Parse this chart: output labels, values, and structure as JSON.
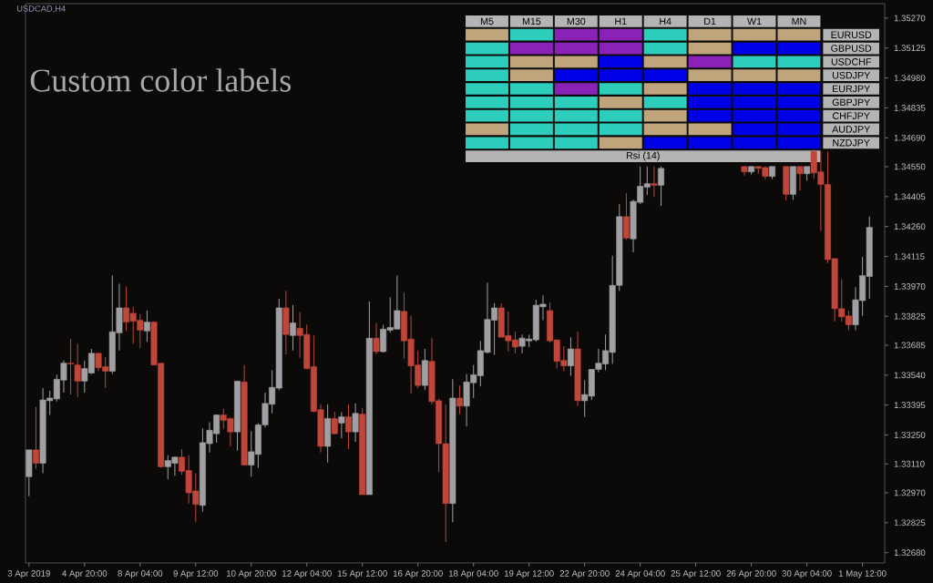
{
  "chart_data": [
    {
      "type": "candlestick",
      "title": "USDCAD,H4",
      "annotations": [
        "Custom color labels"
      ],
      "categories": [
        "3 Apr 2019",
        null,
        null,
        null,
        null,
        null,
        null,
        null,
        "4 Apr 20:00",
        null,
        null,
        null,
        null,
        null,
        null,
        null,
        "8 Apr 04:00",
        null,
        null,
        null,
        null,
        null,
        null,
        null,
        "9 Apr 12:00",
        null,
        null,
        null,
        null,
        null,
        null,
        null,
        "10 Apr 20:00",
        null,
        null,
        null,
        null,
        null,
        null,
        null,
        "12 Apr 04:00",
        null,
        null,
        null,
        null,
        null,
        null,
        null,
        "15 Apr 12:00",
        null,
        null,
        null,
        null,
        null,
        null,
        null,
        "16 Apr 20:00",
        null,
        null,
        null,
        null,
        null,
        null,
        null,
        "18 Apr 04:00",
        null,
        null,
        null,
        null,
        null,
        null,
        null,
        "19 Apr 12:00",
        null,
        null,
        null,
        null,
        null,
        null,
        null,
        "22 Apr 20:00",
        null,
        null,
        null,
        null,
        null,
        null,
        null,
        "24 Apr 04:00",
        null,
        null,
        null,
        null,
        null,
        null,
        null,
        "25 Apr 12:00",
        null,
        null,
        null,
        null,
        null,
        null,
        null,
        "26 Apr 20:00",
        null,
        null,
        null,
        null,
        null,
        null,
        null,
        "30 Apr 04:00",
        null,
        null,
        null,
        null,
        null,
        null,
        null,
        "1 May 12:00",
        null
      ],
      "ohlc": [
        [
          1.33048,
          1.33178,
          1.32953,
          1.33178
        ],
        [
          1.33178,
          1.33386,
          1.33087,
          1.33113
        ],
        [
          1.33113,
          1.33477,
          1.33065,
          1.3342
        ],
        [
          1.33416,
          1.33464,
          1.33347,
          1.33429
        ],
        [
          1.33425,
          1.33542,
          1.33412,
          1.3352
        ],
        [
          1.33516,
          1.33611,
          1.33455,
          1.33598
        ],
        [
          1.33598,
          1.33715,
          1.33446,
          1.33594
        ],
        [
          1.33589,
          1.33693,
          1.33433,
          1.33511
        ],
        [
          1.33511,
          1.33611,
          1.33455,
          1.33572
        ],
        [
          1.3355,
          1.33667,
          1.33546,
          1.33646
        ],
        [
          1.33646,
          1.33646,
          1.33559,
          1.33576
        ],
        [
          1.33581,
          1.33628,
          1.33477,
          1.33559
        ],
        [
          1.33559,
          1.34022,
          1.33546,
          1.3375
        ],
        [
          1.33745,
          1.33983,
          1.33659,
          1.33866
        ],
        [
          1.33866,
          1.3397,
          1.33754,
          1.33797
        ],
        [
          1.3384,
          1.33871,
          1.33693,
          1.33801
        ],
        [
          1.33806,
          1.33836,
          1.33672,
          1.33758
        ],
        [
          1.33754,
          1.33853,
          1.33702,
          1.33797
        ],
        [
          1.33797,
          1.33801,
          1.33589,
          1.33589
        ],
        [
          1.33598,
          1.33598,
          1.33091,
          1.33096
        ],
        [
          1.33096,
          1.33152,
          1.33035,
          1.33126
        ],
        [
          1.33113,
          1.33143,
          1.33052,
          1.33143
        ],
        [
          1.33143,
          1.33182,
          1.33057,
          1.33074
        ],
        [
          1.33078,
          1.33152,
          1.32918,
          1.3297
        ],
        [
          1.32979,
          1.33065,
          1.32827,
          1.32914
        ],
        [
          1.32909,
          1.33282,
          1.32879,
          1.33213
        ],
        [
          1.33208,
          1.33312,
          1.33165,
          1.33273
        ],
        [
          1.33256,
          1.33351,
          1.33213,
          1.33347
        ],
        [
          1.33347,
          1.33377,
          1.33278,
          1.33321
        ],
        [
          1.3333,
          1.33334,
          1.33195,
          1.33265
        ],
        [
          1.33265,
          1.33511,
          1.33174,
          1.33511
        ],
        [
          1.33507,
          1.33589,
          1.33104,
          1.33104
        ],
        [
          1.33104,
          1.33269,
          1.33048,
          1.33169
        ],
        [
          1.33156,
          1.33308,
          1.33091,
          1.33299
        ],
        [
          1.33299,
          1.33455,
          1.33286,
          1.33403
        ],
        [
          1.33399,
          1.33563,
          1.33355,
          1.33481
        ],
        [
          1.33477,
          1.3391,
          1.33468,
          1.33866
        ],
        [
          1.33866,
          1.33949,
          1.33641,
          1.33737
        ],
        [
          1.33732,
          1.33879,
          1.33659,
          1.33793
        ],
        [
          1.33767,
          1.33845,
          1.33624,
          1.33732
        ],
        [
          1.33737,
          1.33784,
          1.33568,
          1.33572
        ],
        [
          1.33581,
          1.33732,
          1.3336,
          1.33364
        ],
        [
          1.33373,
          1.33399,
          1.33165,
          1.33195
        ],
        [
          1.33195,
          1.33399,
          1.33117,
          1.3333
        ],
        [
          1.3333,
          1.33364,
          1.33252,
          1.33256
        ],
        [
          1.33308,
          1.3336,
          1.33234,
          1.33338
        ],
        [
          1.33338,
          1.33399,
          1.33182,
          1.33265
        ],
        [
          1.33265,
          1.33403,
          1.33217,
          1.33355
        ],
        [
          1.33351,
          1.33381,
          1.32961,
          1.32961
        ],
        [
          1.32961,
          1.33897,
          1.32961,
          1.33719
        ],
        [
          1.33719,
          1.33793,
          1.33641,
          1.33654
        ],
        [
          1.33654,
          1.33784,
          1.3365,
          1.33763
        ],
        [
          1.33758,
          1.33918,
          1.33745,
          1.33771
        ],
        [
          1.33763,
          1.34022,
          1.33763,
          1.33853
        ],
        [
          1.33849,
          1.3394,
          1.3362,
          1.33706
        ],
        [
          1.33715,
          1.33827,
          1.33451,
          1.33585
        ],
        [
          1.33589,
          1.33659,
          1.33477,
          1.3349
        ],
        [
          1.3349,
          1.33667,
          1.33468,
          1.33611
        ],
        [
          1.33607,
          1.33719,
          1.33399,
          1.33412
        ],
        [
          1.33416,
          1.33425,
          1.3307,
          1.33208
        ],
        [
          1.33208,
          1.33399,
          1.32732,
          1.32918
        ],
        [
          1.32918,
          1.3352,
          1.32827,
          1.33429
        ],
        [
          1.33429,
          1.3349,
          1.33351,
          1.3339
        ],
        [
          1.3339,
          1.33546,
          1.33291,
          1.33507
        ],
        [
          1.33503,
          1.33589,
          1.33429,
          1.33542
        ],
        [
          1.33537,
          1.33706,
          1.33485,
          1.33659
        ],
        [
          1.3365,
          1.33988,
          1.33646,
          1.3381
        ],
        [
          1.33806,
          1.33888,
          1.33637,
          1.33866
        ],
        [
          1.33866,
          1.33888,
          1.33724,
          1.33724
        ],
        [
          1.33732,
          1.33849,
          1.33654,
          1.33706
        ],
        [
          1.33711,
          1.3375,
          1.33646,
          1.33676
        ],
        [
          1.3368,
          1.33737,
          1.33646,
          1.33719
        ],
        [
          1.33706,
          1.33737,
          1.33676,
          1.33715
        ],
        [
          1.33711,
          1.33905,
          1.33702,
          1.33879
        ],
        [
          1.33871,
          1.33927,
          1.33806,
          1.33884
        ],
        [
          1.33853,
          1.33892,
          1.33698,
          1.33706
        ],
        [
          1.33711,
          1.33711,
          1.33572,
          1.33607
        ],
        [
          1.33611,
          1.3368,
          1.33559,
          1.33585
        ],
        [
          1.33585,
          1.33724,
          1.33537,
          1.33667
        ],
        [
          1.33667,
          1.3375,
          1.3339,
          1.33416
        ],
        [
          1.33416,
          1.33516,
          1.33338,
          1.33446
        ],
        [
          1.33438,
          1.33568,
          1.3342,
          1.33568
        ],
        [
          1.33568,
          1.33667,
          1.33555,
          1.33598
        ],
        [
          1.33594,
          1.33737,
          1.33563,
          1.33659
        ],
        [
          1.3365,
          1.34118,
          1.33594,
          1.33975
        ],
        [
          1.33975,
          1.34369,
          1.33949,
          1.34308
        ],
        [
          1.34308,
          1.34421,
          1.34196,
          1.34204
        ],
        [
          1.342,
          1.3439,
          1.34135,
          1.34382
        ],
        [
          1.34377,
          1.34551,
          1.34369,
          1.34455
        ],
        [
          1.34451,
          1.34551,
          1.34412,
          1.34468
        ],
        [
          1.34468,
          1.34551,
          1.34403,
          1.3446
        ],
        [
          1.3446,
          1.34551,
          1.3436,
          1.34542
        ],
        null,
        null,
        null,
        null,
        null,
        null,
        null,
        null,
        null,
        null,
        null,
        [
          1.34551,
          1.34551,
          1.34507,
          1.34525
        ],
        [
          1.34525,
          1.34551,
          1.34512,
          1.34551
        ],
        [
          1.34551,
          1.34551,
          1.34516,
          1.34542
        ],
        [
          1.34546,
          1.34551,
          1.3449,
          1.34503
        ],
        [
          1.34503,
          1.34551,
          1.3449,
          1.34551
        ],
        null,
        [
          1.34551,
          1.34551,
          1.34386,
          1.34416
        ],
        [
          1.34416,
          1.34551,
          1.3439,
          1.34551
        ],
        [
          1.34551,
          1.34551,
          1.34434,
          1.34516
        ],
        [
          1.34516,
          1.34551,
          1.34481,
          1.34551
        ],
        [
          1.34624,
          1.34633,
          1.3449,
          1.3452
        ],
        [
          1.34525,
          1.34624,
          1.34239,
          1.34464
        ],
        [
          1.34464,
          1.34624,
          1.34083,
          1.341
        ],
        [
          1.34105,
          1.34105,
          1.33801,
          1.33862
        ],
        [
          1.33862,
          1.34005,
          1.33801,
          1.33823
        ],
        [
          1.33827,
          1.33853,
          1.33758,
          1.33784
        ],
        [
          1.33784,
          1.33966,
          1.33758,
          1.33905
        ],
        [
          1.33901,
          1.34113,
          1.33827,
          1.34022
        ],
        [
          1.34018,
          1.34308,
          1.3391,
          1.34256
        ]
      ],
      "colors": [
        "#a0a0a4",
        "#c0463a",
        "#a0a0a4",
        "#a0a0a4",
        "#a0a0a4",
        "#a0a0a4",
        "#c0463a",
        "#c0463a",
        "#a0a0a4",
        "#a0a0a4",
        "#c0463a",
        "#c0463a",
        "#a0a0a4",
        "#a0a0a4",
        "#c0463a",
        "#c0463a",
        "#c0463a",
        "#a0a0a4",
        "#c0463a",
        "#c0463a",
        "#a0a0a4",
        "#a0a0a4",
        "#c0463a",
        "#c0463a",
        "#c0463a",
        "#a0a0a4",
        "#a0a0a4",
        "#a0a0a4",
        "#c0463a",
        "#c0463a",
        "#a0a0a4",
        "#c0463a",
        "#a0a0a4",
        "#a0a0a4",
        "#a0a0a4",
        "#a0a0a4",
        "#a0a0a4",
        "#c0463a",
        "#a0a0a4",
        "#c0463a",
        "#c0463a",
        "#c0463a",
        "#c0463a",
        "#a0a0a4",
        "#c0463a",
        "#a0a0a4",
        "#c0463a",
        "#a0a0a4",
        "#c0463a",
        "#a0a0a4",
        "#c0463a",
        "#a0a0a4",
        "#a0a0a4",
        "#a0a0a4",
        "#c0463a",
        "#c0463a",
        "#c0463a",
        "#a0a0a4",
        "#c0463a",
        "#c0463a",
        "#c0463a",
        "#a0a0a4",
        "#c0463a",
        "#a0a0a4",
        "#a0a0a4",
        "#a0a0a4",
        "#a0a0a4",
        "#a0a0a4",
        "#c0463a",
        "#c0463a",
        "#c0463a",
        "#a0a0a4",
        "#a0a0a4",
        "#a0a0a4",
        "#a0a0a4",
        "#c0463a",
        "#c0463a",
        "#c0463a",
        "#a0a0a4",
        "#c0463a",
        "#a0a0a4",
        "#a0a0a4",
        "#a0a0a4",
        "#a0a0a4",
        "#a0a0a4",
        "#a0a0a4",
        "#c0463a",
        "#a0a0a4",
        "#a0a0a4",
        "#a0a0a4",
        "#c0463a",
        "#a0a0a4",
        null,
        null,
        null,
        null,
        null,
        null,
        null,
        null,
        null,
        null,
        null,
        "#c0463a",
        "#a0a0a4",
        "#c0463a",
        "#c0463a",
        "#a0a0a4",
        null,
        "#c0463a",
        "#a0a0a4",
        "#c0463a",
        "#a0a0a4",
        "#c0463a",
        "#c0463a",
        "#c0463a",
        "#c0463a",
        "#c0463a",
        "#c0463a",
        "#a0a0a4",
        "#a0a0a4",
        "#a0a0a4"
      ],
      "ylim": [
        1.3263,
        1.3534
      ],
      "yticks": [
        {
          "value": 1.3268,
          "label": "1.32680"
        },
        1.32825,
        {
          "value": 1.3297,
          "label": "1.32970"
        },
        {
          "value": 1.3311,
          "label": "1.33110"
        },
        {
          "value": 1.3325,
          "label": "1.33250"
        },
        1.33395,
        {
          "value": 1.3354,
          "label": "1.33540"
        },
        1.33685,
        1.33825,
        {
          "value": 1.3397,
          "label": "1.33970"
        },
        1.34115,
        {
          "value": 1.3426,
          "label": "1.34260"
        },
        1.34405,
        {
          "value": 1.3455,
          "label": "1.34550"
        },
        {
          "value": 1.3469,
          "label": "1.34690"
        },
        1.34835,
        {
          "value": 1.3498,
          "label": "1.34980"
        },
        1.35125,
        {
          "value": 1.3527,
          "label": "1.35270"
        }
      ]
    },
    {
      "type": "other",
      "title": "Rsi (14)",
      "categories": [
        "M5",
        "M15",
        "M30",
        "H1",
        "H4",
        "D1",
        "W1",
        "MN"
      ],
      "y_categories": [
        "EURUSD",
        "GBPUSD",
        "USDCHF",
        "USDJPY",
        "EURJPY",
        "GBPJPY",
        "CHFJPY",
        "AUDJPY",
        "NZDJPY"
      ],
      "colors": [
        [
          "#c0a47c",
          "#2ccdbb",
          "#8a22b8",
          "#8a22b8",
          "#2ccdbb",
          "#c0a47c",
          "#c0a47c",
          "#c0a47c"
        ],
        [
          "#2ccdbb",
          "#8a22b8",
          "#8a22b8",
          "#8a22b8",
          "#2ccdbb",
          "#c0a47c",
          "#0000e6",
          "#0000e6"
        ],
        [
          "#2ccdbb",
          "#c0a47c",
          "#c0a47c",
          "#0000e6",
          "#c0a47c",
          "#8a22b8",
          "#2ccdbb",
          "#2ccdbb"
        ],
        [
          "#2ccdbb",
          "#c0a47c",
          "#0000e6",
          "#0000e6",
          "#0000e6",
          "#c0a47c",
          "#c0a47c",
          "#c0a47c"
        ],
        [
          "#2ccdbb",
          "#2ccdbb",
          "#8a22b8",
          "#2ccdbb",
          "#c0a47c",
          "#0000e6",
          "#0000e6",
          "#0000e6"
        ],
        [
          "#2ccdbb",
          "#2ccdbb",
          "#2ccdbb",
          "#c0a47c",
          "#2ccdbb",
          "#0000e6",
          "#0000e6",
          "#0000e6"
        ],
        [
          "#2ccdbb",
          "#2ccdbb",
          "#2ccdbb",
          "#2ccdbb",
          "#c0a47c",
          "#0000e6",
          "#0000e6",
          "#0000e6"
        ],
        [
          "#c0a47c",
          "#2ccdbb",
          "#2ccdbb",
          "#2ccdbb",
          "#c0a47c",
          "#c0a47c",
          "#0000e6",
          "#0000e6"
        ],
        [
          "#2ccdbb",
          "#2ccdbb",
          "#2ccdbb",
          "#c0a47c",
          "#0000e6",
          "#0000e6",
          "#0000e6",
          "#0000e6"
        ]
      ]
    }
  ]
}
